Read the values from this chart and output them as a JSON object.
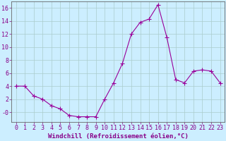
{
  "x": [
    0,
    1,
    2,
    3,
    4,
    5,
    6,
    7,
    8,
    9,
    10,
    11,
    12,
    13,
    14,
    15,
    16,
    17,
    18,
    19,
    20,
    21,
    22,
    23
  ],
  "y": [
    4.0,
    4.0,
    2.5,
    2.0,
    1.0,
    0.5,
    -0.5,
    -0.7,
    -0.7,
    -0.7,
    2.0,
    4.5,
    7.5,
    12.0,
    13.8,
    14.3,
    16.5,
    11.5,
    5.0,
    4.5,
    6.3,
    6.5,
    6.3,
    4.5
  ],
  "line_color": "#990099",
  "marker": "+",
  "marker_size": 4,
  "background_color": "#cceeff",
  "grid_color": "#aacccc",
  "xlabel": "Windchill (Refroidissement éolien,°C)",
  "xlim": [
    -0.5,
    23.5
  ],
  "ylim": [
    -1.5,
    17.0
  ],
  "yticks": [
    0,
    2,
    4,
    6,
    8,
    10,
    12,
    14,
    16
  ],
  "ytick_labels": [
    "-0",
    "2",
    "4",
    "6",
    "8",
    "10",
    "12",
    "14",
    "16"
  ],
  "xticks": [
    0,
    1,
    2,
    3,
    4,
    5,
    6,
    7,
    8,
    9,
    10,
    11,
    12,
    13,
    14,
    15,
    16,
    17,
    18,
    19,
    20,
    21,
    22,
    23
  ],
  "xlabel_fontsize": 6.5,
  "tick_fontsize": 6.0,
  "axis_color": "#880088",
  "spine_color": "#666666"
}
